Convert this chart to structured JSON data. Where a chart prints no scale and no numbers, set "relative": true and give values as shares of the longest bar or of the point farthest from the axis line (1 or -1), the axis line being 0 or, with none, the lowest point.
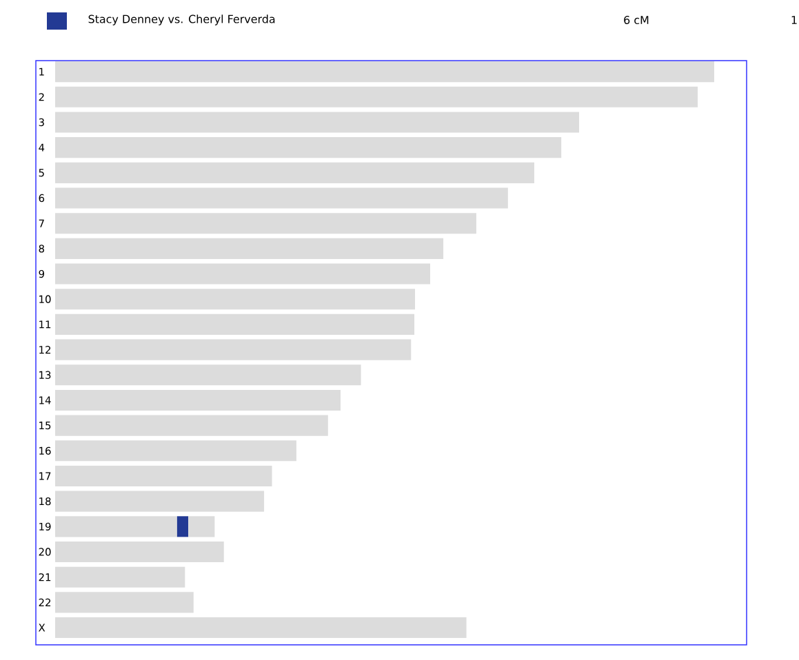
{
  "chart_data": {
    "type": "bar",
    "orientation": "horizontal",
    "relative": true,
    "stacked": true,
    "legend": "top",
    "categories": [
      "1",
      "2",
      "3",
      "4",
      "5",
      "6",
      "7",
      "8",
      "9",
      "10",
      "11",
      "12",
      "13",
      "14",
      "15",
      "16",
      "17",
      "18",
      "19",
      "20",
      "21",
      "22",
      "X"
    ],
    "series": [
      {
        "color": "#dcdcdc",
        "values": [
          1,
          0.975,
          0.795,
          0.768,
          0.727,
          0.687,
          0.639,
          0.589,
          0.569,
          0.546,
          0.545,
          0.54,
          0.464,
          0.433,
          0.414,
          0.366,
          0.329,
          0.317,
          0.185,
          0.256,
          0.197,
          0.21,
          0.624
        ]
      },
      {
        "name": "Stacy Denney vs. Cheryl Ferverda",
        "color": "#233a94",
        "values": [
          null,
          null,
          null,
          null,
          null,
          null,
          null,
          null,
          null,
          null,
          null,
          null,
          null,
          null,
          null,
          null,
          null,
          null,
          0.017,
          null,
          null,
          null,
          null
        ]
      },
      {
        "color": "#dcdcdc",
        "values": [
          null,
          null,
          null,
          null,
          null,
          null,
          null,
          null,
          null,
          null,
          null,
          null,
          null,
          null,
          null,
          null,
          null,
          null,
          0.04,
          null,
          null,
          null,
          null
        ]
      }
    ],
    "annotations": [
      "6 cM",
      "1"
    ]
  }
}
